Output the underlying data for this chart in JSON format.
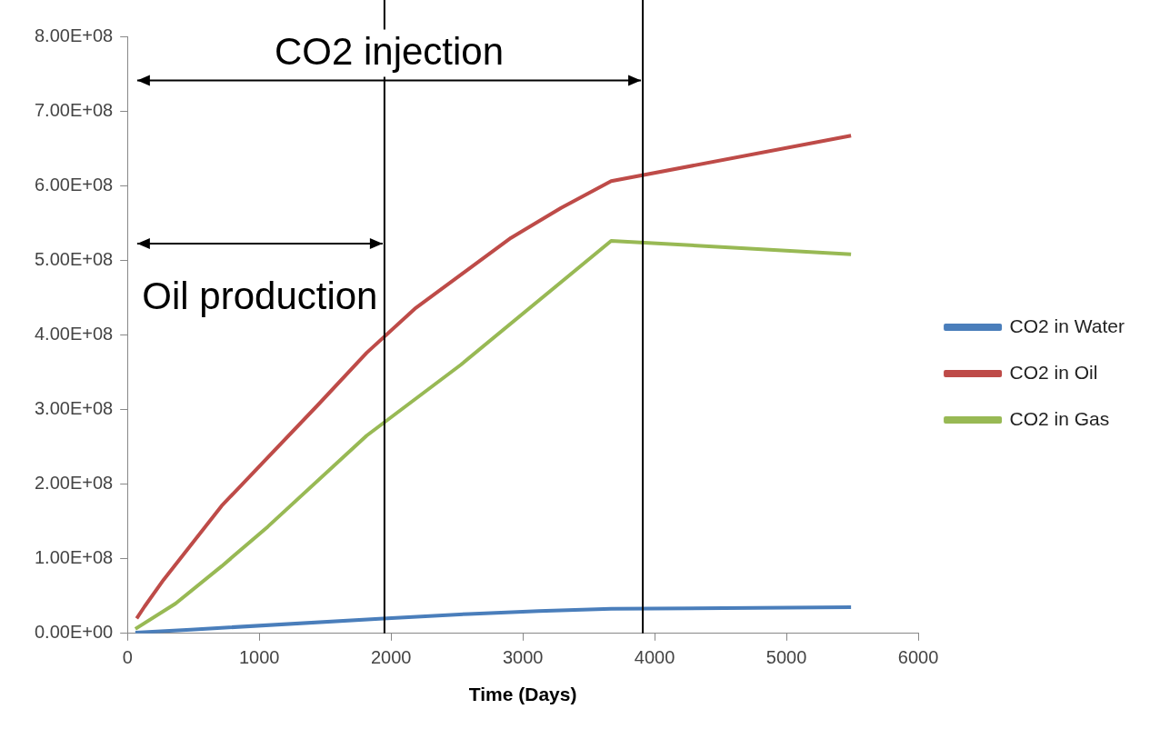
{
  "chart_data": {
    "type": "line",
    "xlabel": "Time (Days)",
    "xlim": [
      0,
      6000
    ],
    "xticks": [
      0,
      1000,
      2000,
      3000,
      4000,
      5000,
      6000
    ],
    "ylim": [
      0,
      800000000
    ],
    "yticks": [
      {
        "value": 0,
        "label": "0.00E+00"
      },
      {
        "value": 100000000,
        "label": "1.00E+08"
      },
      {
        "value": 200000000,
        "label": "2.00E+08"
      },
      {
        "value": 300000000,
        "label": "3.00E+08"
      },
      {
        "value": 400000000,
        "label": "4.00E+08"
      },
      {
        "value": 500000000,
        "label": "5.00E+08"
      },
      {
        "value": 600000000,
        "label": "6.00E+08"
      },
      {
        "value": 700000000,
        "label": "7.00E+08"
      },
      {
        "value": 800000000,
        "label": "8.00E+08"
      }
    ],
    "grid": false,
    "legend": "right",
    "marker": "none",
    "line_style": "solid",
    "series": [
      {
        "name": "CO2 in Water",
        "color": "#4a7ebb",
        "x": [
          60,
          480,
          1940,
          2590,
          3120,
          3670,
          5490
        ],
        "values": [
          1000000,
          5000000,
          20000000,
          26000000,
          30000000,
          33000000,
          35000000
        ]
      },
      {
        "name": "CO2 in Oil",
        "color": "#be4b48",
        "x": [
          70,
          130,
          275,
          715,
          1450,
          1815,
          2180,
          2910,
          3290,
          3670,
          5490
        ],
        "values": [
          20000000,
          36000000,
          72000000,
          171000000,
          307000000,
          376000000,
          435000000,
          530000000,
          570000000,
          606000000,
          667000000
        ]
      },
      {
        "name": "CO2 in Gas",
        "color": "#98b954",
        "x": [
          60,
          365,
          715,
          1065,
          1815,
          2530,
          3670,
          5490
        ],
        "values": [
          6000000,
          40000000,
          90000000,
          143000000,
          265000000,
          360000000,
          526000000,
          508000000
        ]
      }
    ],
    "ref_lines": [
      {
        "axis": "x",
        "value": 3910,
        "color": "#000000"
      },
      {
        "axis": "x",
        "value": 1950,
        "color": "#000000"
      }
    ],
    "annotations": [
      "CO2 injection",
      "Oil production"
    ]
  }
}
